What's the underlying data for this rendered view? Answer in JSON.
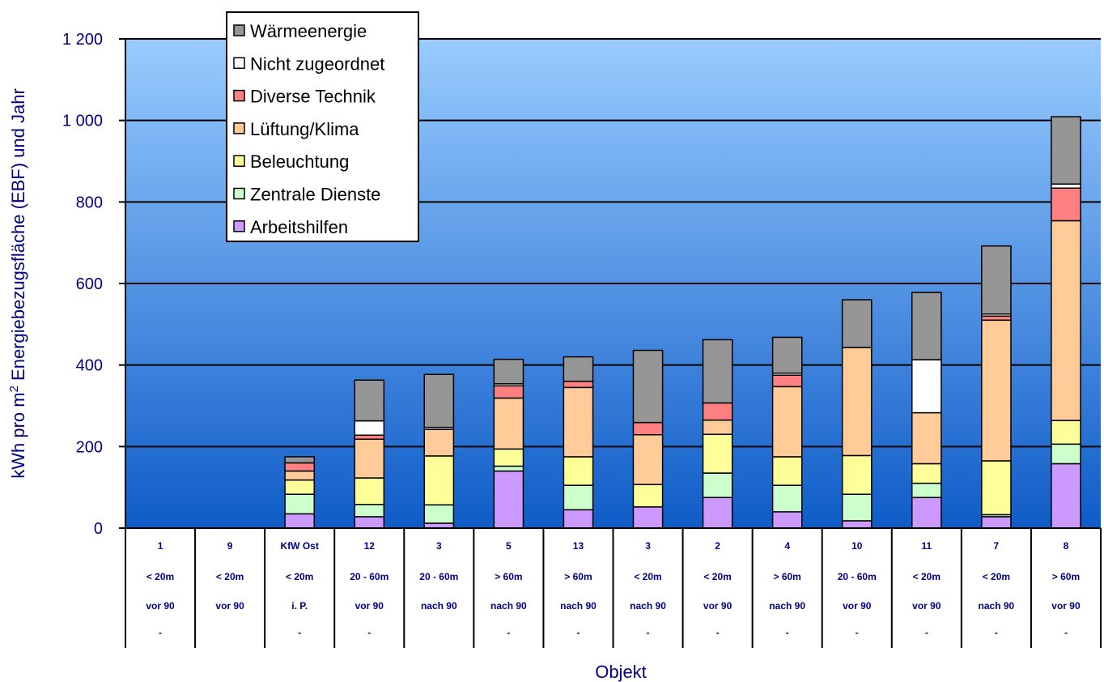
{
  "chart_data": {
    "type": "bar",
    "stacked": true,
    "title": "",
    "xlabel": "Objekt",
    "ylabel": "kWh pro m² Energiebezugsfläche (EBF) und Jahr",
    "ylabel_parts": {
      "before": "kWh pro m",
      "sup": "2",
      "after": " Energiebezugsfläche (EBF) und Jahr"
    },
    "ylim": [
      0,
      1200
    ],
    "yticks": [
      0,
      200,
      400,
      600,
      800,
      1000,
      1200
    ],
    "ytick_labels": [
      "0",
      "200",
      "400",
      "600",
      "800",
      "1 000",
      "1 200"
    ],
    "grid": true,
    "legend_position": "top-left",
    "categories": [
      {
        "lines": [
          "1",
          "< 20m",
          "vor 90",
          "-"
        ]
      },
      {
        "lines": [
          "9",
          "< 20m",
          "vor 90",
          ""
        ]
      },
      {
        "lines": [
          "KfW Ost",
          "< 20m",
          "i. P.",
          "-"
        ]
      },
      {
        "lines": [
          "12",
          "20 - 60m",
          "vor 90",
          "-"
        ]
      },
      {
        "lines": [
          "3",
          "20 - 60m",
          "nach 90",
          ""
        ]
      },
      {
        "lines": [
          "5",
          "> 60m",
          "nach 90",
          "-"
        ]
      },
      {
        "lines": [
          "13",
          "> 60m",
          "nach 90",
          "-"
        ]
      },
      {
        "lines": [
          "3",
          "< 20m",
          "nach 90",
          "-"
        ]
      },
      {
        "lines": [
          "2",
          "< 20m",
          "vor 90",
          "-"
        ]
      },
      {
        "lines": [
          "4",
          "> 60m",
          "nach 90",
          "-"
        ]
      },
      {
        "lines": [
          "10",
          "20 - 60m",
          "vor 90",
          "-"
        ]
      },
      {
        "lines": [
          "11",
          "< 20m",
          "vor 90",
          "-"
        ]
      },
      {
        "lines": [
          "7",
          "< 20m",
          "nach 90",
          "-"
        ]
      },
      {
        "lines": [
          "8",
          "> 60m",
          "vor 90",
          "-"
        ]
      }
    ],
    "series": [
      {
        "name": "Arbeitshilfen",
        "color": "#CC99FF",
        "values": [
          0,
          0,
          35,
          28,
          12,
          140,
          45,
          52,
          75,
          40,
          18,
          75,
          28,
          158
        ]
      },
      {
        "name": "Zentrale Dienste",
        "color": "#CCFFCC",
        "values": [
          0,
          0,
          48,
          30,
          45,
          12,
          60,
          0,
          60,
          65,
          65,
          35,
          5,
          48
        ]
      },
      {
        "name": "Beleuchtung",
        "color": "#FFFF99",
        "values": [
          0,
          0,
          35,
          65,
          120,
          42,
          70,
          55,
          95,
          70,
          95,
          48,
          132,
          58
        ]
      },
      {
        "name": "Lüftung/Klima",
        "color": "#FFCC99",
        "values": [
          0,
          0,
          22,
          95,
          65,
          125,
          170,
          122,
          35,
          172,
          265,
          125,
          345,
          490
        ]
      },
      {
        "name": "Diverse Technik",
        "color": "#FF8080",
        "values": [
          0,
          0,
          20,
          10,
          0,
          30,
          15,
          30,
          42,
          28,
          0,
          0,
          10,
          80
        ]
      },
      {
        "name": "Nicht zugeordnet",
        "color": "#FFFFFF",
        "values": [
          0,
          0,
          0,
          35,
          5,
          5,
          0,
          0,
          0,
          5,
          0,
          130,
          5,
          10
        ]
      },
      {
        "name": "Wärmeenergie",
        "color": "#969696",
        "values": [
          0,
          0,
          15,
          100,
          130,
          60,
          60,
          177,
          155,
          88,
          117,
          165,
          167,
          165
        ]
      }
    ],
    "colors": {
      "plot_top": "#99CCFF",
      "plot_bottom": "#0F5CC8",
      "axis_text": "#000080"
    }
  }
}
